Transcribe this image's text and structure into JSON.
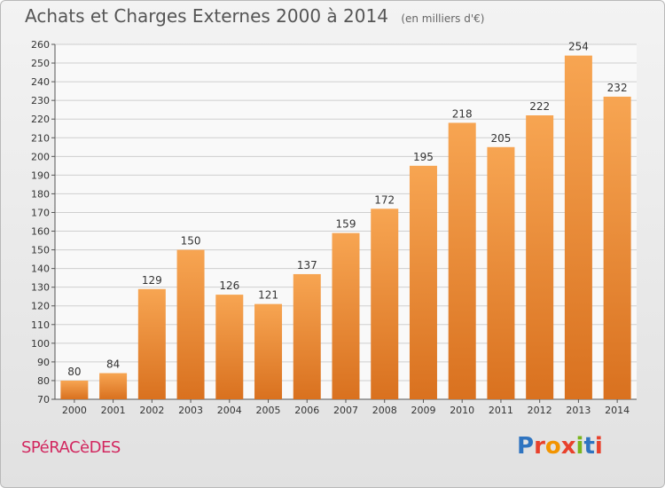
{
  "header": {
    "title": "Achats et Charges Externes 2000 à 2014",
    "unit": "(en milliers d'€)"
  },
  "footer": {
    "commune": "SPéRACèDES",
    "logo_text": "Proxiti",
    "logo_colors": [
      "#2f74c0",
      "#e8412c",
      "#f29400",
      "#e8412c",
      "#7ab51d",
      "#2f74c0",
      "#e8412c"
    ]
  },
  "colors": {
    "bar_top": "#f7a552",
    "bar_bottom": "#d9711f",
    "grid": "#cfcfcf"
  },
  "chart_data": {
    "type": "bar",
    "title": "Achats et Charges Externes 2000 à 2014",
    "subtitle": "(en milliers d'€)",
    "categories": [
      "2000",
      "2001",
      "2002",
      "2003",
      "2004",
      "2005",
      "2006",
      "2007",
      "2008",
      "2009",
      "2010",
      "2011",
      "2012",
      "2013",
      "2014"
    ],
    "values": [
      80,
      84,
      129,
      150,
      126,
      121,
      137,
      159,
      172,
      195,
      218,
      205,
      222,
      254,
      232
    ],
    "ylim": [
      70,
      260
    ],
    "yticks": [
      70,
      80,
      90,
      100,
      110,
      120,
      130,
      140,
      150,
      160,
      170,
      180,
      190,
      200,
      210,
      220,
      230,
      240,
      250,
      260
    ],
    "grid": true,
    "legend": "none"
  }
}
